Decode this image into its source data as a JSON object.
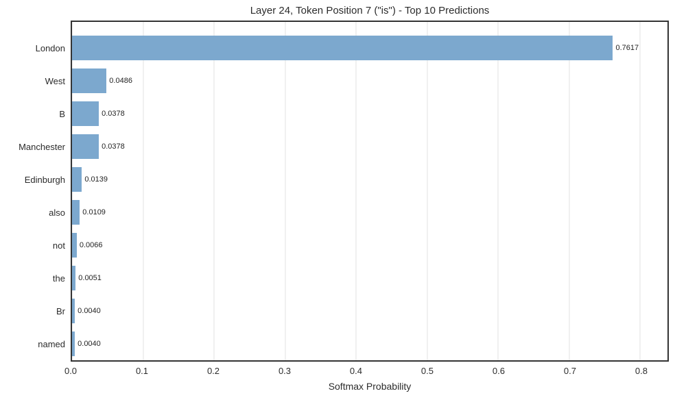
{
  "chart_data": {
    "type": "bar",
    "orientation": "horizontal",
    "title": "Layer 24, Token Position 7 (\"is\") - Top 10 Predictions",
    "xlabel": "Softmax Probability",
    "ylabel": "",
    "categories": [
      "London",
      "West",
      "B",
      "Manchester",
      "Edinburgh",
      "also",
      "not",
      "the",
      "Br",
      "named"
    ],
    "values": [
      0.7617,
      0.0486,
      0.0378,
      0.0378,
      0.0139,
      0.0109,
      0.0066,
      0.0051,
      0.004,
      0.004
    ],
    "value_labels": [
      "0.7617",
      "0.0486",
      "0.0378",
      "0.0378",
      "0.0139",
      "0.0109",
      "0.0066",
      "0.0051",
      "0.0040",
      "0.0040"
    ],
    "xlim": [
      0,
      0.8385
    ],
    "xticks": [
      0.0,
      0.1,
      0.2,
      0.3,
      0.4,
      0.5,
      0.6,
      0.7,
      0.8
    ],
    "xtick_labels": [
      "0.0",
      "0.1",
      "0.2",
      "0.3",
      "0.4",
      "0.5",
      "0.6",
      "0.7",
      "0.8"
    ],
    "grid": "vertical-only",
    "legend": "none",
    "colors": {
      "bar": "#7ca8ce",
      "spine": "#333333",
      "gridline": "#e2e2e2",
      "text": "#2b2b2b",
      "background": "#ffffff"
    }
  }
}
